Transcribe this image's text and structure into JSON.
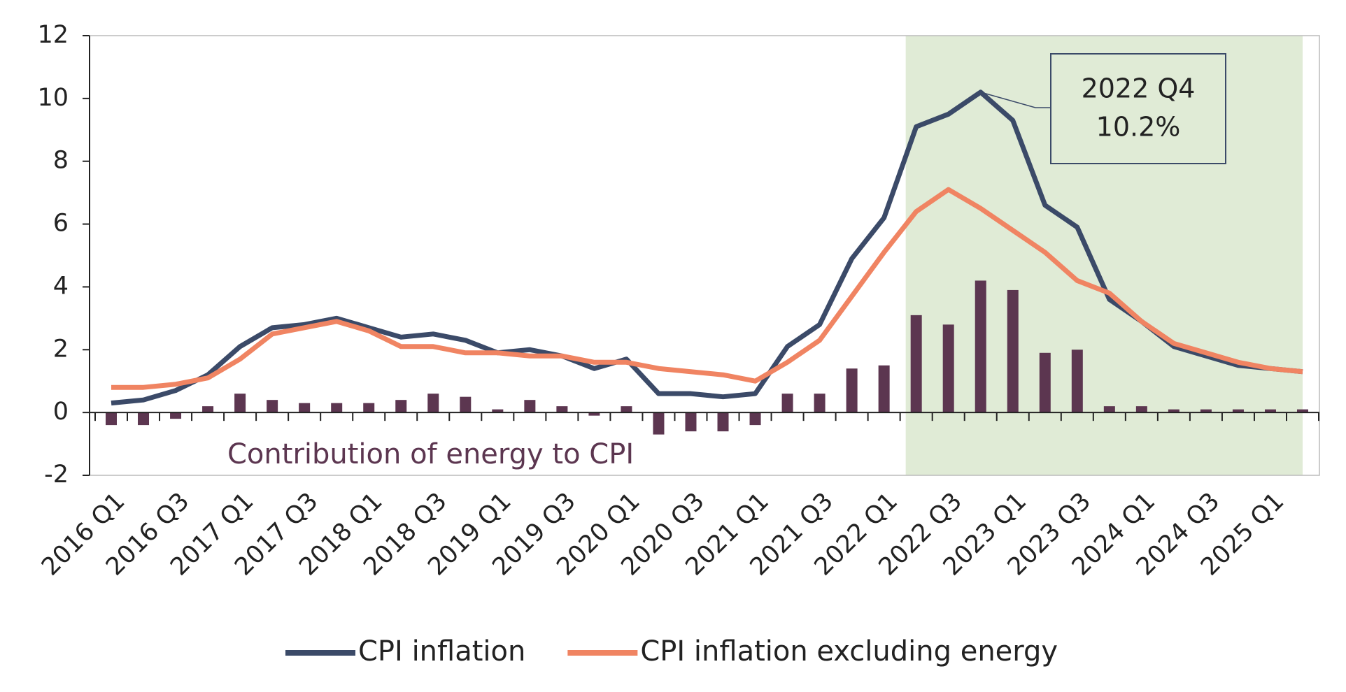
{
  "chart_data": {
    "type": "bar-line",
    "categories": [
      "2016 Q1",
      null,
      "2016 Q3",
      null,
      "2017 Q1",
      null,
      "2017 Q3",
      null,
      "2018 Q1",
      null,
      "2018 Q3",
      null,
      "2019 Q1",
      null,
      "2019 Q3",
      null,
      "2020 Q1",
      null,
      "2020 Q3",
      null,
      "2021 Q1",
      null,
      "2021 Q3",
      null,
      "2022 Q1",
      null,
      "2022 Q3",
      null,
      "2023 Q1",
      null,
      "2023 Q3",
      null,
      "2024 Q1",
      null,
      "2024 Q3",
      null,
      "2025 Q1",
      null
    ],
    "series": [
      {
        "name": "Contribution of energy to CPI",
        "type": "bar",
        "color": "#5c3650",
        "values": [
          -0.4,
          -0.4,
          -0.2,
          0.2,
          0.6,
          0.4,
          0.3,
          0.3,
          0.3,
          0.4,
          0.6,
          0.5,
          0.1,
          0.4,
          0.2,
          -0.1,
          0.2,
          -0.7,
          -0.6,
          -0.6,
          -0.4,
          0.6,
          0.6,
          1.4,
          1.5,
          3.1,
          2.8,
          4.2,
          3.9,
          1.9,
          2.0,
          0.2,
          0.2,
          0.1,
          0.1,
          0.1,
          0.1,
          0.1
        ]
      },
      {
        "name": "CPI inflation",
        "type": "line",
        "color": "#3b4a68",
        "values": [
          0.3,
          0.4,
          0.7,
          1.2,
          2.1,
          2.7,
          2.8,
          3.0,
          2.7,
          2.4,
          2.5,
          2.3,
          1.9,
          2.0,
          1.8,
          1.4,
          1.7,
          0.6,
          0.6,
          0.5,
          0.6,
          2.1,
          2.8,
          4.9,
          6.2,
          9.1,
          9.5,
          10.2,
          9.3,
          6.6,
          5.9,
          3.6,
          2.9,
          2.1,
          1.8,
          1.5,
          1.4,
          1.3
        ]
      },
      {
        "name": "CPI inflation excluding energy",
        "type": "line",
        "color": "#f08462",
        "values": [
          0.8,
          0.8,
          0.9,
          1.1,
          1.7,
          2.5,
          2.7,
          2.9,
          2.6,
          2.1,
          2.1,
          1.9,
          1.9,
          1.8,
          1.8,
          1.6,
          1.6,
          1.4,
          1.3,
          1.2,
          1.0,
          1.6,
          2.3,
          3.7,
          5.1,
          6.4,
          7.1,
          6.5,
          5.8,
          5.1,
          4.2,
          3.8,
          2.9,
          2.2,
          1.9,
          1.6,
          1.4,
          1.3
        ]
      }
    ],
    "annotation": [
      "2022 Q4",
      "10.2%"
    ],
    "ylim": [
      -2,
      12
    ],
    "yticks": [
      -2,
      0,
      2,
      4,
      6,
      8,
      10,
      12
    ],
    "legend": "bottom"
  }
}
